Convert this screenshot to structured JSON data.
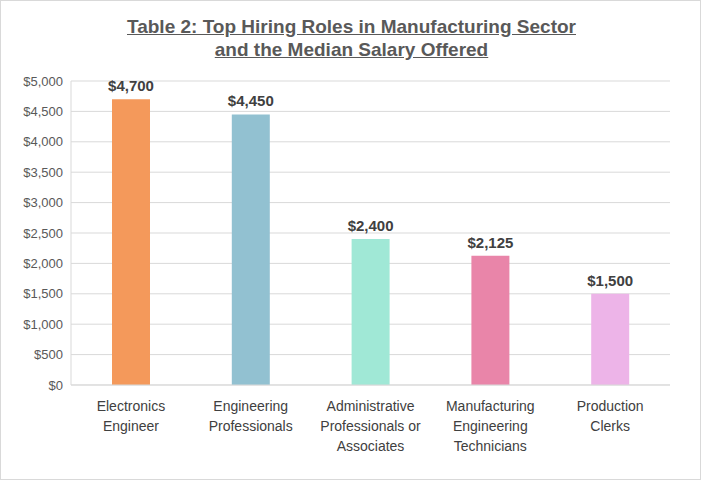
{
  "chart_data": {
    "type": "bar",
    "title": "Table 2: Top Hiring Roles in Manufacturing Sector\nand the Median Salary Offered",
    "categories": [
      "Electronics Engineer",
      "Engineering Professionals",
      "Administrative Professionals or Associates",
      "Manufacturing Engineering Technicians",
      "Production Clerks"
    ],
    "values": [
      4700,
      4450,
      2400,
      2125,
      1500
    ],
    "value_labels": [
      "$4,700",
      "$4,450",
      "$2,400",
      "$2,125",
      "$1,500"
    ],
    "colors": [
      "#f4995b",
      "#92c1d1",
      "#a0e8d6",
      "#e985a9",
      "#edb4e8"
    ],
    "ylim": [
      0,
      5000
    ],
    "yticks": [
      {
        "value": 0,
        "label": "$0"
      },
      {
        "value": 500,
        "label": "$500"
      },
      {
        "value": 1000,
        "label": "$1,000"
      },
      {
        "value": 1500,
        "label": "$1,500"
      },
      {
        "value": 2000,
        "label": "$2,000"
      },
      {
        "value": 2500,
        "label": "$2,500"
      },
      {
        "value": 3000,
        "label": "$3,000"
      },
      {
        "value": 3500,
        "label": "$3,500"
      },
      {
        "value": 4000,
        "label": "$4,000"
      },
      {
        "value": 4500,
        "label": "$4,500"
      },
      {
        "value": 5000,
        "label": "$5,000"
      }
    ],
    "grid": true,
    "data_labels": true
  }
}
